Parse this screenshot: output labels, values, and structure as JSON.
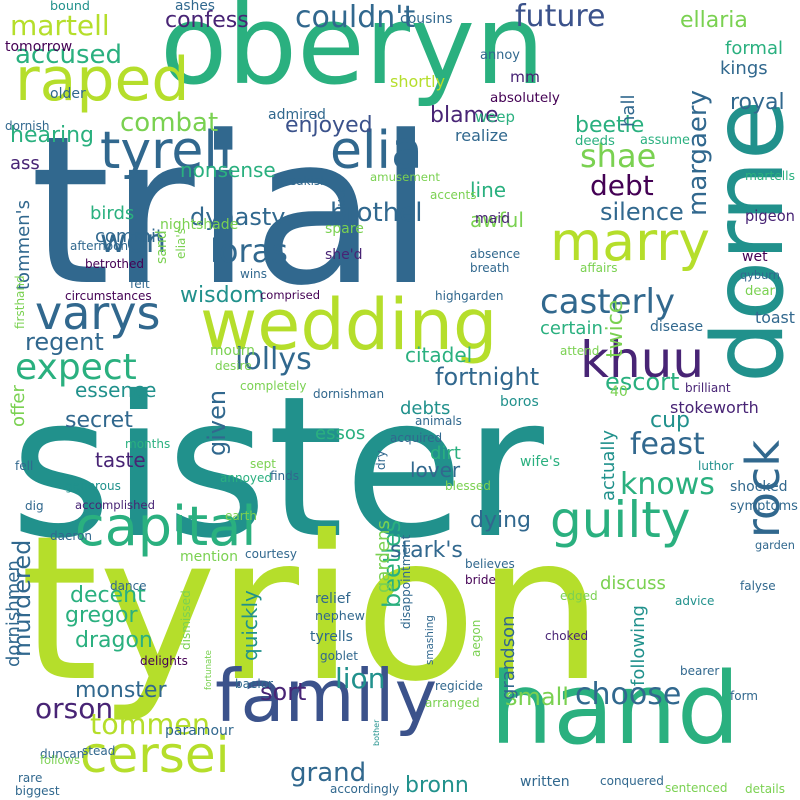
{
  "palette": {
    "purple": "#440154",
    "indigo": "#482475",
    "blue": "#3b528b",
    "steel": "#31688e",
    "teal": "#21918c",
    "green": "#2ab07f",
    "lime": "#7ad151",
    "chartreuse": "#b5de2b",
    "yellow": "#fde725"
  },
  "words": [
    {
      "text": "trial"
    },
    {
      "text": "sister"
    },
    {
      "text": "tyrion"
    },
    {
      "text": "oberyn"
    },
    {
      "text": "dorne"
    },
    {
      "text": "hand"
    },
    {
      "text": "wedding"
    },
    {
      "text": "family"
    },
    {
      "text": "tyrell"
    },
    {
      "text": "elia"
    },
    {
      "text": "raped"
    },
    {
      "text": "marry"
    },
    {
      "text": "capital"
    },
    {
      "text": "guilty"
    },
    {
      "text": "khuu"
    },
    {
      "text": "varys"
    },
    {
      "text": "cersei"
    },
    {
      "text": "rock"
    },
    {
      "text": "casterly"
    },
    {
      "text": "expect"
    },
    {
      "text": "couldn't"
    },
    {
      "text": "future"
    },
    {
      "text": "martell"
    },
    {
      "text": "accused"
    },
    {
      "text": "confess"
    },
    {
      "text": "ellaria"
    },
    {
      "text": "formal"
    },
    {
      "text": "kings"
    },
    {
      "text": "royal"
    },
    {
      "text": "mm"
    },
    {
      "text": "combat"
    },
    {
      "text": "enjoyed"
    },
    {
      "text": "margaery"
    },
    {
      "text": "shae"
    },
    {
      "text": "blame"
    },
    {
      "text": "beetle"
    },
    {
      "text": "debt"
    },
    {
      "text": "nonsense"
    },
    {
      "text": "won"
    },
    {
      "text": "loras"
    },
    {
      "text": "brothel"
    },
    {
      "text": "dynasty"
    },
    {
      "text": "silence"
    },
    {
      "text": "lollys"
    },
    {
      "text": "regent"
    },
    {
      "text": "wisdom"
    },
    {
      "text": "fortnight"
    },
    {
      "text": "feast"
    },
    {
      "text": "knows"
    },
    {
      "text": "escort"
    },
    {
      "text": "secret"
    },
    {
      "text": "given"
    },
    {
      "text": "taste"
    },
    {
      "text": "beetles"
    },
    {
      "text": "choose"
    },
    {
      "text": "dying"
    },
    {
      "text": "stark's"
    },
    {
      "text": "murdered"
    },
    {
      "text": "orson"
    },
    {
      "text": "monster"
    },
    {
      "text": "tommen"
    },
    {
      "text": "grand"
    },
    {
      "text": "bronn"
    },
    {
      "text": "sort"
    },
    {
      "text": "lion"
    },
    {
      "text": "small"
    },
    {
      "text": "dragon"
    },
    {
      "text": "gregor"
    },
    {
      "text": "decent"
    },
    {
      "text": "hearing"
    },
    {
      "text": "ass"
    },
    {
      "text": "line"
    },
    {
      "text": "awful"
    },
    {
      "text": "birds"
    },
    {
      "text": "commit"
    },
    {
      "text": "tommen's"
    },
    {
      "text": "essence"
    },
    {
      "text": "offer"
    },
    {
      "text": "debts"
    },
    {
      "text": "essos"
    },
    {
      "text": "dirt"
    },
    {
      "text": "lover"
    },
    {
      "text": "cup"
    },
    {
      "text": "certain"
    },
    {
      "text": "twice"
    },
    {
      "text": "citadel"
    },
    {
      "text": "discuss"
    },
    {
      "text": "following"
    },
    {
      "text": "grandson"
    },
    {
      "text": "actually"
    },
    {
      "text": "quickly"
    },
    {
      "text": "gardens"
    },
    {
      "text": "dornishmen"
    },
    {
      "text": "stokeworth"
    },
    {
      "text": "martells"
    },
    {
      "text": "pigeon"
    },
    {
      "text": "qyburn"
    },
    {
      "text": "wet"
    },
    {
      "text": "toast"
    },
    {
      "text": "hall"
    },
    {
      "text": "absolutely"
    },
    {
      "text": "shortly"
    },
    {
      "text": "tomorrow"
    },
    {
      "text": "older"
    },
    {
      "text": "afternoon"
    },
    {
      "text": "bound"
    },
    {
      "text": "ashes"
    },
    {
      "text": "cousins"
    },
    {
      "text": "annoy"
    },
    {
      "text": "weep"
    },
    {
      "text": "realize"
    },
    {
      "text": "deeds"
    },
    {
      "text": "assume"
    },
    {
      "text": "admired"
    },
    {
      "text": "dornish"
    },
    {
      "text": "freakish"
    },
    {
      "text": "luck"
    },
    {
      "text": "amusement"
    },
    {
      "text": "accents"
    },
    {
      "text": "maid"
    },
    {
      "text": "nightshade"
    },
    {
      "text": "spare"
    },
    {
      "text": "absence"
    },
    {
      "text": "breath"
    },
    {
      "text": "affairs"
    },
    {
      "text": "sand"
    },
    {
      "text": "elia's"
    },
    {
      "text": "she'd"
    },
    {
      "text": "betrothed"
    },
    {
      "text": "wins"
    },
    {
      "text": "firsthand"
    },
    {
      "text": "felt"
    },
    {
      "text": "circumstances"
    },
    {
      "text": "comprised"
    },
    {
      "text": "highgarden"
    },
    {
      "text": "disease"
    },
    {
      "text": "dear"
    },
    {
      "text": "mourn"
    },
    {
      "text": "desire"
    },
    {
      "text": "attend"
    },
    {
      "text": "completely"
    },
    {
      "text": "dornishman"
    },
    {
      "text": "40"
    },
    {
      "text": "brilliant"
    },
    {
      "text": "boros"
    },
    {
      "text": "animals"
    },
    {
      "text": "acquired"
    },
    {
      "text": "months"
    },
    {
      "text": "sept"
    },
    {
      "text": "dry"
    },
    {
      "text": "wife's"
    },
    {
      "text": "luthor"
    },
    {
      "text": "shocked"
    },
    {
      "text": "symptoms"
    },
    {
      "text": "fell"
    },
    {
      "text": "generous"
    },
    {
      "text": "annoyed"
    },
    {
      "text": "finds"
    },
    {
      "text": "blessed"
    },
    {
      "text": "falyse"
    },
    {
      "text": "dig"
    },
    {
      "text": "accomplished"
    },
    {
      "text": "earth"
    },
    {
      "text": "daeron"
    },
    {
      "text": "garden"
    },
    {
      "text": "mention"
    },
    {
      "text": "courtesy"
    },
    {
      "text": "bride"
    },
    {
      "text": "believes"
    },
    {
      "text": "disappointment"
    },
    {
      "text": "dance"
    },
    {
      "text": "relief"
    },
    {
      "text": "nephew"
    },
    {
      "text": "edged"
    },
    {
      "text": "advice"
    },
    {
      "text": "dismissed"
    },
    {
      "text": "tyrells"
    },
    {
      "text": "smashing"
    },
    {
      "text": "aegon"
    },
    {
      "text": "choked"
    },
    {
      "text": "delights"
    },
    {
      "text": "goblet"
    },
    {
      "text": "fortunate"
    },
    {
      "text": "regicide"
    },
    {
      "text": "bearer"
    },
    {
      "text": "baelor"
    },
    {
      "text": "form"
    },
    {
      "text": "paramour"
    },
    {
      "text": "arranged"
    },
    {
      "text": "stead"
    },
    {
      "text": "duncan"
    },
    {
      "text": "bother"
    },
    {
      "text": "follows"
    },
    {
      "text": "rare"
    },
    {
      "text": "written"
    },
    {
      "text": "biggest"
    },
    {
      "text": "accordingly"
    },
    {
      "text": "conquered"
    },
    {
      "text": "sentenced"
    },
    {
      "text": "details"
    }
  ]
}
